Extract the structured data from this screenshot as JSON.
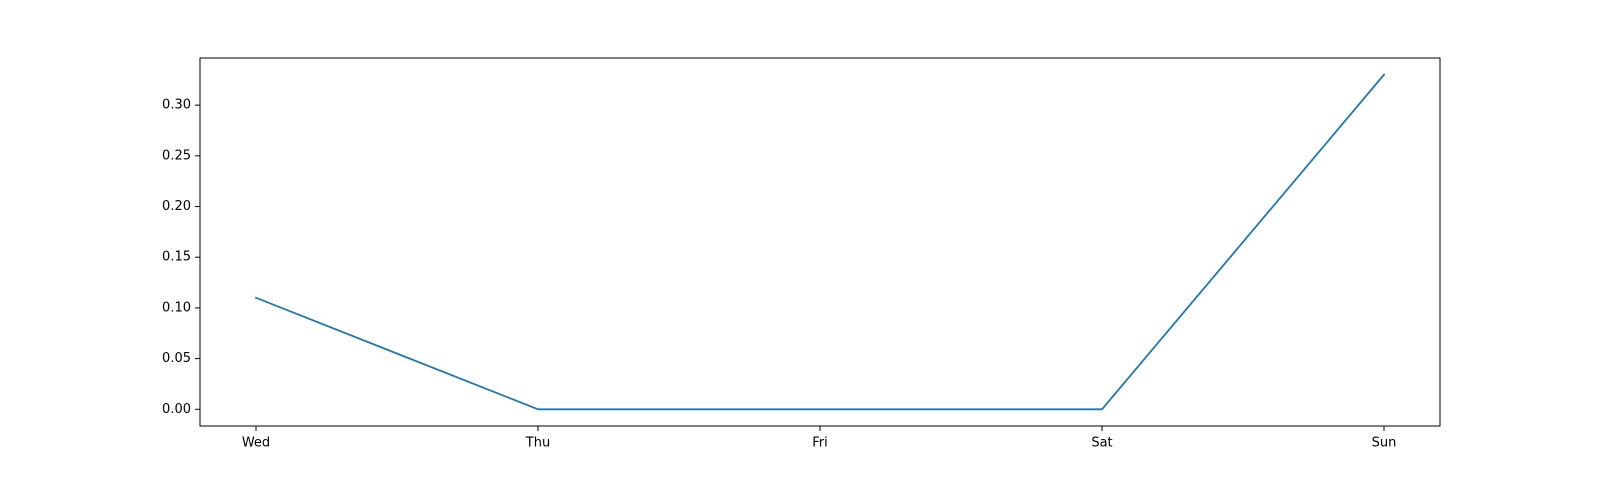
{
  "chart_data": {
    "type": "line",
    "categories": [
      "Wed",
      "Thu",
      "Fri",
      "Sat",
      "Sun"
    ],
    "series": [
      {
        "values": [
          0.11,
          0.0,
          0.0,
          0.0,
          0.33
        ]
      }
    ],
    "title": "",
    "xlabel": "",
    "ylabel": "",
    "ylim": [
      -0.0165,
      0.3465
    ],
    "yticks": [
      "0.00",
      "0.05",
      "0.10",
      "0.15",
      "0.20",
      "0.25",
      "0.30"
    ],
    "grid": false,
    "legend": "none",
    "colors": {
      "line": "#1f77b4",
      "axes": "#000000",
      "background": "#ffffff"
    }
  }
}
